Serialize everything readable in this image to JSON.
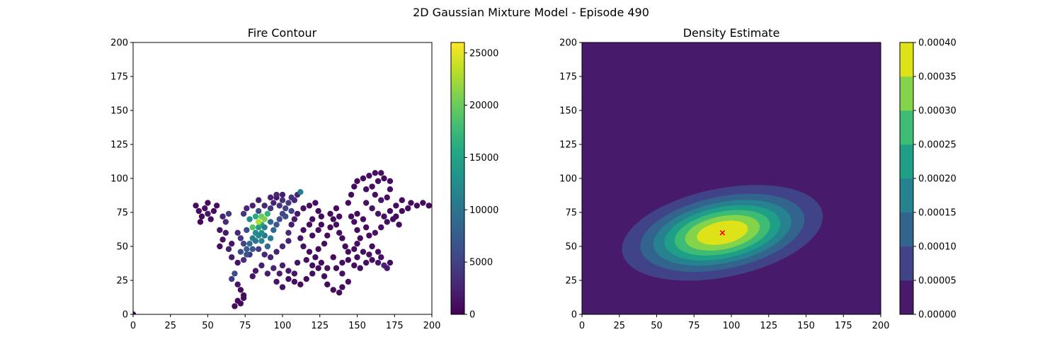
{
  "figure": {
    "suptitle": "2D Gaussian Mixture Model - Episode 490"
  },
  "colors": {
    "viridis": [
      "#440154",
      "#482475",
      "#414487",
      "#355f8d",
      "#2a788e",
      "#21918c",
      "#22a884",
      "#44bf70",
      "#7ad151",
      "#bddf26",
      "#fde725"
    ],
    "density_levels": [
      "#481a6c",
      "#404387",
      "#32648e",
      "#26828e",
      "#1f9f88",
      "#3fbc73",
      "#84d44b",
      "#dde318"
    ],
    "peak_marker": "#ff0000"
  },
  "chart_data": [
    {
      "type": "scatter",
      "title": "Fire Contour",
      "xlabel": "",
      "ylabel": "",
      "xlim": [
        0,
        200
      ],
      "ylim": [
        0,
        200
      ],
      "xticks": [
        "0",
        "25",
        "50",
        "75",
        "100",
        "125",
        "150",
        "175",
        "200"
      ],
      "yticks": [
        "0",
        "25",
        "50",
        "75",
        "100",
        "125",
        "150",
        "175",
        "200"
      ],
      "colorbar": {
        "min": 0,
        "max": 26000,
        "ticks": [
          "0",
          "5000",
          "10000",
          "15000",
          "20000",
          "25000"
        ]
      },
      "points": [
        [
          0,
          0,
          0
        ],
        [
          42,
          80,
          800
        ],
        [
          44,
          76,
          900
        ],
        [
          46,
          72,
          700
        ],
        [
          48,
          78,
          1200
        ],
        [
          50,
          74,
          1500
        ],
        [
          52,
          70,
          1000
        ],
        [
          54,
          76,
          800
        ],
        [
          45,
          68,
          600
        ],
        [
          56,
          80,
          900
        ],
        [
          50,
          82,
          700
        ],
        [
          60,
          72,
          2500
        ],
        [
          62,
          68,
          3000
        ],
        [
          64,
          74,
          4500
        ],
        [
          58,
          62,
          1500
        ],
        [
          62,
          60,
          1800
        ],
        [
          60,
          55,
          1200
        ],
        [
          58,
          50,
          1000
        ],
        [
          64,
          48,
          2200
        ],
        [
          66,
          52,
          1500
        ],
        [
          66,
          42,
          2000
        ],
        [
          70,
          38,
          1500
        ],
        [
          68,
          30,
          6000
        ],
        [
          66,
          26,
          4500
        ],
        [
          70,
          22,
          1500
        ],
        [
          72,
          18,
          900
        ],
        [
          74,
          14,
          800
        ],
        [
          70,
          10,
          700
        ],
        [
          68,
          6,
          800
        ],
        [
          72,
          8,
          700
        ],
        [
          74,
          12,
          900
        ],
        [
          72,
          46,
          6000
        ],
        [
          74,
          40,
          3500
        ],
        [
          76,
          48,
          8000
        ],
        [
          78,
          52,
          9000
        ],
        [
          80,
          56,
          11000
        ],
        [
          82,
          60,
          12500
        ],
        [
          84,
          64,
          14000
        ],
        [
          86,
          66,
          16000
        ],
        [
          80,
          64,
          19000
        ],
        [
          84,
          68,
          23000
        ],
        [
          86,
          72,
          20000
        ],
        [
          88,
          70,
          21000
        ],
        [
          82,
          72,
          16000
        ],
        [
          90,
          74,
          17000
        ],
        [
          92,
          68,
          9000
        ],
        [
          88,
          58,
          10000
        ],
        [
          86,
          54,
          12000
        ],
        [
          90,
          50,
          9000
        ],
        [
          92,
          56,
          11000
        ],
        [
          94,
          62,
          8500
        ],
        [
          96,
          66,
          7000
        ],
        [
          98,
          70,
          6000
        ],
        [
          100,
          74,
          5500
        ],
        [
          102,
          78,
          5000
        ],
        [
          104,
          82,
          4500
        ],
        [
          106,
          86,
          4000
        ],
        [
          110,
          88,
          2500
        ],
        [
          112,
          90,
          11000
        ],
        [
          108,
          84,
          3000
        ],
        [
          100,
          88,
          2200
        ],
        [
          96,
          86,
          1500
        ],
        [
          94,
          82,
          2500
        ],
        [
          98,
          80,
          3500
        ],
        [
          76,
          62,
          6000
        ],
        [
          78,
          70,
          12000
        ],
        [
          74,
          74,
          4000
        ],
        [
          76,
          78,
          3000
        ],
        [
          80,
          80,
          2500
        ],
        [
          84,
          84,
          2000
        ],
        [
          88,
          80,
          3000
        ],
        [
          92,
          78,
          4000
        ],
        [
          70,
          60,
          3000
        ],
        [
          72,
          56,
          4000
        ],
        [
          74,
          52,
          5000
        ],
        [
          78,
          44,
          3500
        ],
        [
          84,
          48,
          4500
        ],
        [
          88,
          44,
          3000
        ],
        [
          92,
          42,
          2500
        ],
        [
          96,
          46,
          2500
        ],
        [
          100,
          50,
          3000
        ],
        [
          104,
          54,
          2500
        ],
        [
          104,
          60,
          3000
        ],
        [
          106,
          66,
          2000
        ],
        [
          108,
          70,
          1800
        ],
        [
          110,
          74,
          1500
        ],
        [
          114,
          78,
          1200
        ],
        [
          118,
          80,
          1000
        ],
        [
          122,
          82,
          800
        ],
        [
          124,
          76,
          700
        ],
        [
          126,
          72,
          800
        ],
        [
          120,
          70,
          900
        ],
        [
          118,
          66,
          1000
        ],
        [
          114,
          62,
          1200
        ],
        [
          112,
          56,
          1500
        ],
        [
          114,
          50,
          1200
        ],
        [
          118,
          46,
          1000
        ],
        [
          122,
          42,
          900
        ],
        [
          126,
          38,
          1000
        ],
        [
          130,
          34,
          1200
        ],
        [
          128,
          28,
          900
        ],
        [
          130,
          22,
          800
        ],
        [
          134,
          18,
          800
        ],
        [
          138,
          16,
          800
        ],
        [
          140,
          20,
          900
        ],
        [
          144,
          24,
          1000
        ],
        [
          140,
          30,
          1200
        ],
        [
          136,
          34,
          1100
        ],
        [
          140,
          38,
          900
        ],
        [
          144,
          40,
          800
        ],
        [
          148,
          36,
          800
        ],
        [
          152,
          34,
          900
        ],
        [
          156,
          38,
          1000
        ],
        [
          160,
          40,
          1100
        ],
        [
          164,
          38,
          1500
        ],
        [
          168,
          36,
          2500
        ],
        [
          170,
          34,
          2000
        ],
        [
          166,
          42,
          1200
        ],
        [
          172,
          38,
          900
        ],
        [
          150,
          42,
          800
        ],
        [
          134,
          42,
          700
        ],
        [
          100,
          36,
          2200
        ],
        [
          104,
          32,
          1800
        ],
        [
          108,
          30,
          1500
        ],
        [
          98,
          30,
          2000
        ],
        [
          94,
          34,
          2500
        ],
        [
          90,
          30,
          2000
        ],
        [
          86,
          36,
          2200
        ],
        [
          82,
          32,
          1800
        ],
        [
          80,
          28,
          1500
        ],
        [
          96,
          24,
          1500
        ],
        [
          100,
          20,
          1200
        ],
        [
          104,
          26,
          1000
        ],
        [
          108,
          24,
          900
        ],
        [
          112,
          22,
          800
        ],
        [
          116,
          26,
          800
        ],
        [
          120,
          30,
          900
        ],
        [
          124,
          34,
          900
        ],
        [
          110,
          38,
          1500
        ],
        [
          130,
          58,
          800
        ],
        [
          132,
          64,
          700
        ],
        [
          134,
          70,
          800
        ],
        [
          132,
          74,
          800
        ],
        [
          136,
          78,
          700
        ],
        [
          138,
          72,
          800
        ],
        [
          136,
          66,
          900
        ],
        [
          138,
          60,
          900
        ],
        [
          140,
          56,
          800
        ],
        [
          142,
          50,
          800
        ],
        [
          144,
          46,
          900
        ],
        [
          148,
          48,
          800
        ],
        [
          150,
          52,
          900
        ],
        [
          152,
          56,
          800
        ],
        [
          150,
          62,
          800
        ],
        [
          148,
          68,
          900
        ],
        [
          146,
          72,
          800
        ],
        [
          150,
          74,
          800
        ],
        [
          144,
          82,
          700
        ],
        [
          146,
          88,
          800
        ],
        [
          148,
          94,
          700
        ],
        [
          150,
          98,
          700
        ],
        [
          154,
          100,
          800
        ],
        [
          158,
          102,
          900
        ],
        [
          162,
          104,
          1000
        ],
        [
          166,
          104,
          1200
        ],
        [
          164,
          98,
          900
        ],
        [
          168,
          100,
          800
        ],
        [
          172,
          98,
          800
        ],
        [
          172,
          92,
          900
        ],
        [
          170,
          86,
          1000
        ],
        [
          166,
          84,
          1500
        ],
        [
          162,
          88,
          1200
        ],
        [
          160,
          94,
          1000
        ],
        [
          156,
          92,
          900
        ],
        [
          156,
          82,
          1200
        ],
        [
          160,
          78,
          1500
        ],
        [
          164,
          74,
          1500
        ],
        [
          168,
          72,
          1200
        ],
        [
          170,
          68,
          1100
        ],
        [
          166,
          64,
          1200
        ],
        [
          162,
          60,
          1300
        ],
        [
          158,
          58,
          1000
        ],
        [
          156,
          64,
          1000
        ],
        [
          154,
          70,
          900
        ],
        [
          172,
          76,
          900
        ],
        [
          176,
          72,
          800
        ],
        [
          180,
          76,
          800
        ],
        [
          184,
          78,
          700
        ],
        [
          186,
          82,
          800
        ],
        [
          190,
          80,
          700
        ],
        [
          194,
          82,
          700
        ],
        [
          198,
          80,
          700
        ],
        [
          180,
          84,
          800
        ],
        [
          176,
          80,
          900
        ],
        [
          174,
          70,
          900
        ],
        [
          178,
          66,
          800
        ],
        [
          160,
          50,
          1000
        ],
        [
          164,
          46,
          1100
        ],
        [
          158,
          44,
          1000
        ],
        [
          154,
          46,
          900
        ],
        [
          120,
          58,
          900
        ],
        [
          124,
          62,
          800
        ],
        [
          126,
          66,
          800
        ],
        [
          128,
          52,
          900
        ],
        [
          124,
          48,
          900
        ],
        [
          116,
          40,
          1200
        ],
        [
          120,
          36,
          900
        ],
        [
          92,
          86,
          2500
        ],
        [
          96,
          88,
          2800
        ],
        [
          100,
          84,
          3500
        ],
        [
          102,
          72,
          6000
        ],
        [
          106,
          76,
          5000
        ],
        [
          84,
          76,
          6000
        ],
        [
          86,
          60,
          13000
        ],
        [
          88,
          64,
          11000
        ],
        [
          82,
          54,
          10000
        ],
        [
          84,
          58,
          12000
        ],
        [
          80,
          48,
          7000
        ],
        [
          76,
          44,
          6500
        ]
      ]
    },
    {
      "type": "heatmap",
      "title": "Density Estimate",
      "xlabel": "",
      "ylabel": "",
      "xlim": [
        0,
        200
      ],
      "ylim": [
        0,
        200
      ],
      "xticks": [
        "0",
        "25",
        "50",
        "75",
        "100",
        "125",
        "150",
        "175",
        "200"
      ],
      "yticks": [
        "0",
        "25",
        "50",
        "75",
        "100",
        "125",
        "150",
        "175",
        "200"
      ],
      "colorbar": {
        "levels": [
          0,
          5e-05,
          0.0001,
          0.00015,
          0.0002,
          0.00025,
          0.0003,
          0.00035,
          0.0004
        ],
        "ticks": [
          "0.00000",
          "0.00005",
          "0.00010",
          "0.00015",
          "0.00020",
          "0.00025",
          "0.00030",
          "0.00035",
          "0.00040"
        ]
      },
      "gaussian": {
        "mean": [
          94,
          60
        ],
        "sx": 33,
        "sy": 17,
        "rho": 0.3,
        "peak": 0.0004
      },
      "marker": {
        "x": 94,
        "y": 60,
        "symbol": "x"
      }
    }
  ]
}
